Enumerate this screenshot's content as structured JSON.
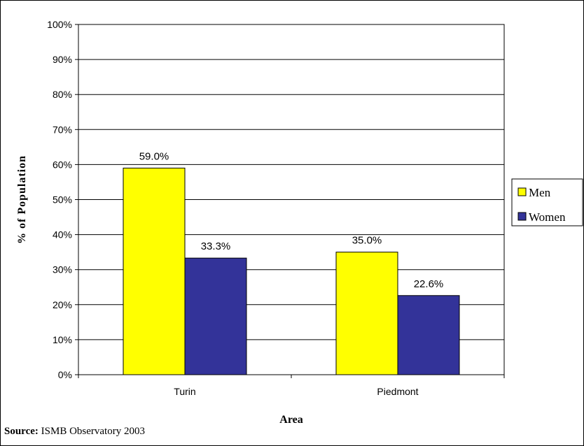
{
  "chart_data": {
    "type": "bar",
    "categories": [
      "Turin",
      "Piedmont"
    ],
    "series": [
      {
        "name": "Men",
        "values": [
          59.0,
          35.0
        ],
        "color": "#FFFF00"
      },
      {
        "name": "Women",
        "values": [
          33.3,
          22.6
        ],
        "color": "#333399"
      }
    ],
    "data_labels": [
      [
        "59.0%",
        "35.0%"
      ],
      [
        "33.3%",
        "22.6%"
      ]
    ],
    "ylabel": "% of Population",
    "xlabel": "Area",
    "ylim": [
      0,
      100
    ],
    "yticks": [
      "0%",
      "10%",
      "20%",
      "30%",
      "40%",
      "50%",
      "60%",
      "70%",
      "80%",
      "90%",
      "100%"
    ],
    "grid": true,
    "legend_position": "right"
  },
  "source": {
    "label": "Source:",
    "text": " ISMB Observatory 2003"
  }
}
